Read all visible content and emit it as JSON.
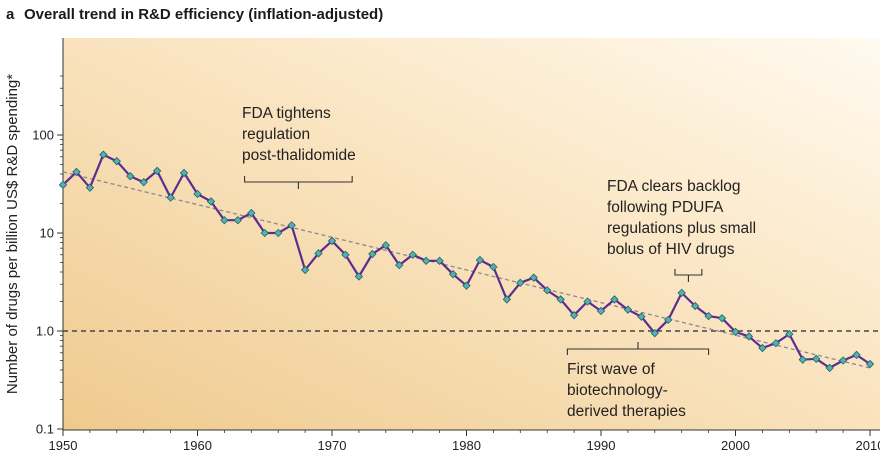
{
  "panel_label": "a",
  "title": "Overall trend in R&D efficiency (inflation-adjusted)",
  "colors": {
    "line": "#5b2d8e",
    "marker": "#4fb3b0",
    "marker_stroke": "#2b5f66",
    "trend": "#8a8a8a",
    "reference": "#444444",
    "bg_dark": "#efca8e",
    "bg_light": "#fffaf0"
  },
  "chart_data": {
    "type": "line",
    "title": "Overall trend in R&D efficiency (inflation-adjusted)",
    "xlabel": "",
    "ylabel": "Number of drugs per billion US$ R&D spending*",
    "xlim": [
      1950,
      2011
    ],
    "ylim": [
      0.1,
      400
    ],
    "yscale": "log",
    "x_ticks": [
      1950,
      1960,
      1970,
      1980,
      1990,
      2000,
      2010
    ],
    "y_ticks": [
      {
        "value": 0.1,
        "label": "0.1"
      },
      {
        "value": 1,
        "label": "1.0"
      },
      {
        "value": 10,
        "label": "10"
      },
      {
        "value": 100,
        "label": "100"
      }
    ],
    "grid": false,
    "series": [
      {
        "x": [
          1950,
          1951,
          1952,
          1953,
          1954,
          1955,
          1956,
          1957,
          1958,
          1959,
          1960,
          1961,
          1962,
          1963,
          1964,
          1965,
          1966,
          1967,
          1968,
          1969,
          1970,
          1971,
          1972,
          1973,
          1974,
          1975,
          1976,
          1977,
          1978,
          1979,
          1980,
          1981,
          1982,
          1983,
          1984,
          1985,
          1986,
          1987,
          1988,
          1989,
          1990,
          1991,
          1992,
          1993,
          1994,
          1995,
          1996,
          1997,
          1998,
          1999,
          2000,
          2001,
          2002,
          2003,
          2004,
          2005,
          2006,
          2007,
          2008,
          2009,
          2010
        ],
        "values": [
          31,
          42,
          29,
          63,
          54,
          38,
          33,
          43,
          23,
          41,
          25,
          21,
          13.5,
          13.5,
          16,
          10,
          10,
          12,
          4.2,
          6.2,
          8.3,
          6,
          3.6,
          6.1,
          7.5,
          4.7,
          6,
          5.2,
          5.2,
          3.8,
          2.9,
          5.3,
          4.5,
          2.1,
          3.1,
          3.5,
          2.6,
          2.1,
          1.45,
          2,
          1.6,
          2.1,
          1.65,
          1.4,
          0.95,
          1.3,
          2.45,
          1.8,
          1.42,
          1.35,
          0.98,
          0.88,
          0.67,
          0.75,
          0.93,
          0.51,
          0.52,
          0.42,
          0.5,
          0.57,
          0.46
        ]
      }
    ],
    "trend_line": {
      "x": [
        1950,
        2010
      ],
      "y": [
        42,
        0.42
      ]
    },
    "reference_line": {
      "y": 1.0
    },
    "annotations": [
      {
        "lines": [
          "FDA tightens",
          "regulation",
          "post-thalidomide"
        ],
        "bracket_x": [
          1963.5,
          1971.5
        ]
      },
      {
        "lines": [
          "FDA clears backlog",
          "following PDUFA",
          "regulations plus small",
          "bolus of HIV drugs"
        ],
        "bracket_x": [
          1995.5,
          1997.5
        ]
      },
      {
        "lines": [
          "First wave of",
          "biotechnology-",
          "derived therapies"
        ],
        "bracket_x": [
          1987.5,
          1998
        ]
      }
    ]
  }
}
